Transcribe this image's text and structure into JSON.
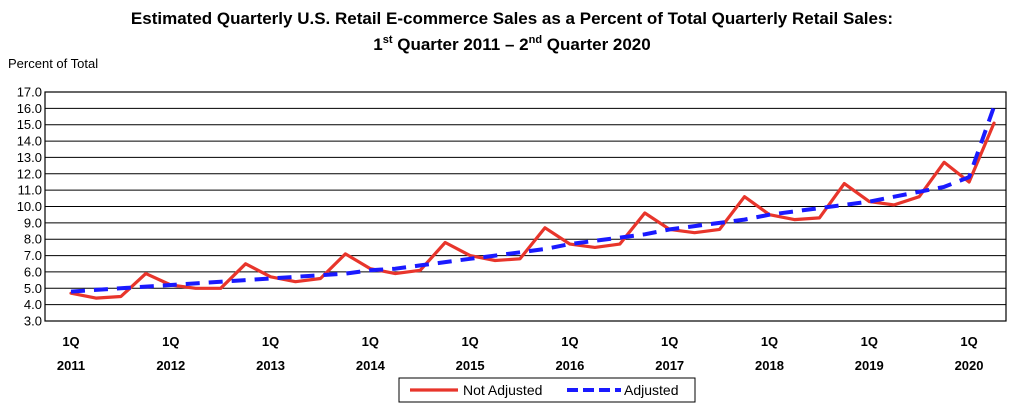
{
  "chart_data": {
    "type": "line",
    "title_line1": "Estimated Quarterly U.S. Retail E-commerce Sales as a Percent of Total Quarterly Retail Sales:",
    "title_line2": {
      "part1": "1",
      "sup1": "st",
      "part2": " Quarter 2011 – 2",
      "sup2": "nd",
      "part3": " Quarter 2020"
    },
    "ylabel": "Percent of Total",
    "ylim": [
      3.0,
      17.0
    ],
    "yticks": [
      "3.0",
      "4.0",
      "5.0",
      "6.0",
      "7.0",
      "8.0",
      "9.0",
      "10.0",
      "11.0",
      "12.0",
      "13.0",
      "14.0",
      "15.0",
      "16.0",
      "17.0"
    ],
    "grid": true,
    "legend_position": "bottom-center",
    "x": [
      "2011Q1",
      "2011Q2",
      "2011Q3",
      "2011Q4",
      "2012Q1",
      "2012Q2",
      "2012Q3",
      "2012Q4",
      "2013Q1",
      "2013Q2",
      "2013Q3",
      "2013Q4",
      "2014Q1",
      "2014Q2",
      "2014Q3",
      "2014Q4",
      "2015Q1",
      "2015Q2",
      "2015Q3",
      "2015Q4",
      "2016Q1",
      "2016Q2",
      "2016Q3",
      "2016Q4",
      "2017Q1",
      "2017Q2",
      "2017Q3",
      "2017Q4",
      "2018Q1",
      "2018Q2",
      "2018Q3",
      "2018Q4",
      "2019Q1",
      "2019Q2",
      "2019Q3",
      "2019Q4",
      "2020Q1",
      "2020Q2"
    ],
    "xtick_labels": [
      {
        "q": "1Q",
        "year": "2011"
      },
      {
        "q": "1Q",
        "year": "2012"
      },
      {
        "q": "1Q",
        "year": "2013"
      },
      {
        "q": "1Q",
        "year": "2014"
      },
      {
        "q": "1Q",
        "year": "2015"
      },
      {
        "q": "1Q",
        "year": "2016"
      },
      {
        "q": "1Q",
        "year": "2017"
      },
      {
        "q": "1Q",
        "year": "2018"
      },
      {
        "q": "1Q",
        "year": "2019"
      },
      {
        "q": "1Q",
        "year": "2020"
      }
    ],
    "series": [
      {
        "name": "Not Adjusted",
        "color": "#e8352b",
        "style": "solid",
        "values": [
          4.7,
          4.4,
          4.5,
          5.9,
          5.2,
          5.0,
          5.0,
          6.5,
          5.7,
          5.4,
          5.6,
          7.1,
          6.2,
          5.9,
          6.1,
          7.8,
          7.0,
          6.7,
          6.8,
          8.7,
          7.7,
          7.5,
          7.7,
          9.6,
          8.6,
          8.4,
          8.6,
          10.6,
          9.5,
          9.2,
          9.3,
          11.4,
          10.3,
          10.1,
          10.6,
          12.7,
          11.5,
          15.1
        ]
      },
      {
        "name": "Adjusted",
        "color": "#1a1aff",
        "style": "dashed",
        "values": [
          4.8,
          4.9,
          5.0,
          5.1,
          5.2,
          5.3,
          5.4,
          5.5,
          5.6,
          5.7,
          5.8,
          5.9,
          6.1,
          6.2,
          6.4,
          6.6,
          6.8,
          7.0,
          7.2,
          7.4,
          7.7,
          7.9,
          8.1,
          8.3,
          8.6,
          8.8,
          9.0,
          9.2,
          9.5,
          9.7,
          9.9,
          10.1,
          10.3,
          10.6,
          10.9,
          11.2,
          11.8,
          16.1
        ]
      }
    ]
  }
}
